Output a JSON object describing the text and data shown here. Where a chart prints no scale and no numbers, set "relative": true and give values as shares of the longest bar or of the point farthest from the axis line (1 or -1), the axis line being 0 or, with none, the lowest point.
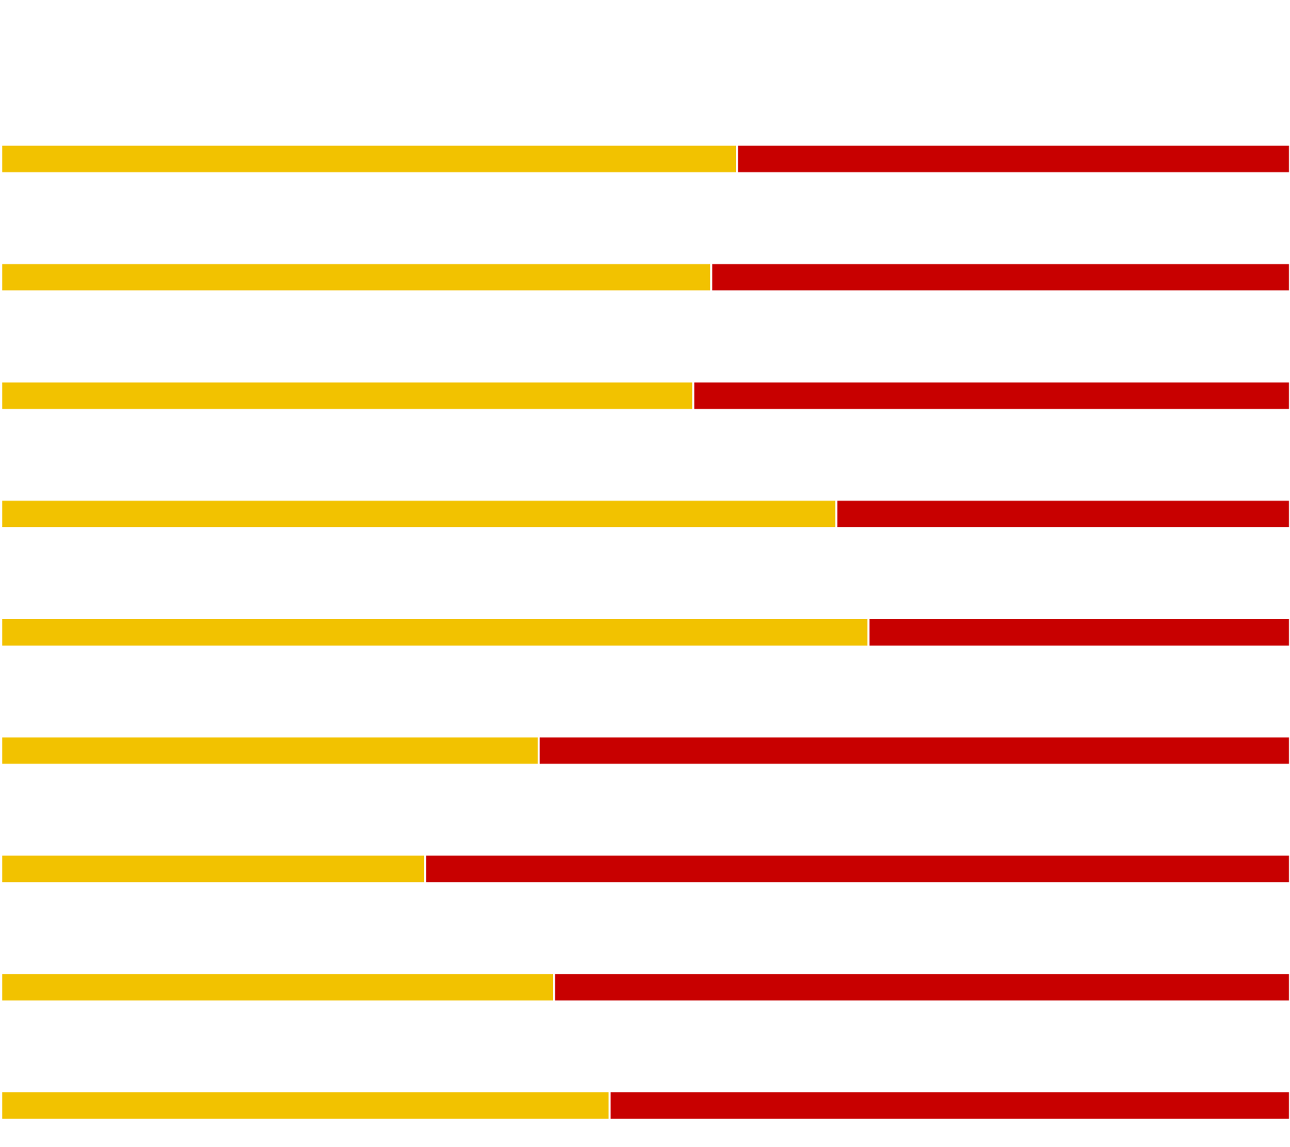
{
  "chart_data": {
    "type": "bar",
    "orientation": "horizontal",
    "stacked": true,
    "relative": true,
    "categories": [
      null,
      null,
      null,
      null,
      null,
      null,
      null,
      null,
      null
    ],
    "series": [
      {
        "color": "#f2c200",
        "values": [
          0.571,
          0.551,
          0.537,
          0.648,
          0.673,
          0.417,
          0.329,
          0.429,
          0.472
        ]
      },
      {
        "color": "#c80000",
        "values": [
          0.429,
          0.449,
          0.463,
          0.352,
          0.327,
          0.583,
          0.671,
          0.571,
          0.528
        ]
      }
    ]
  }
}
